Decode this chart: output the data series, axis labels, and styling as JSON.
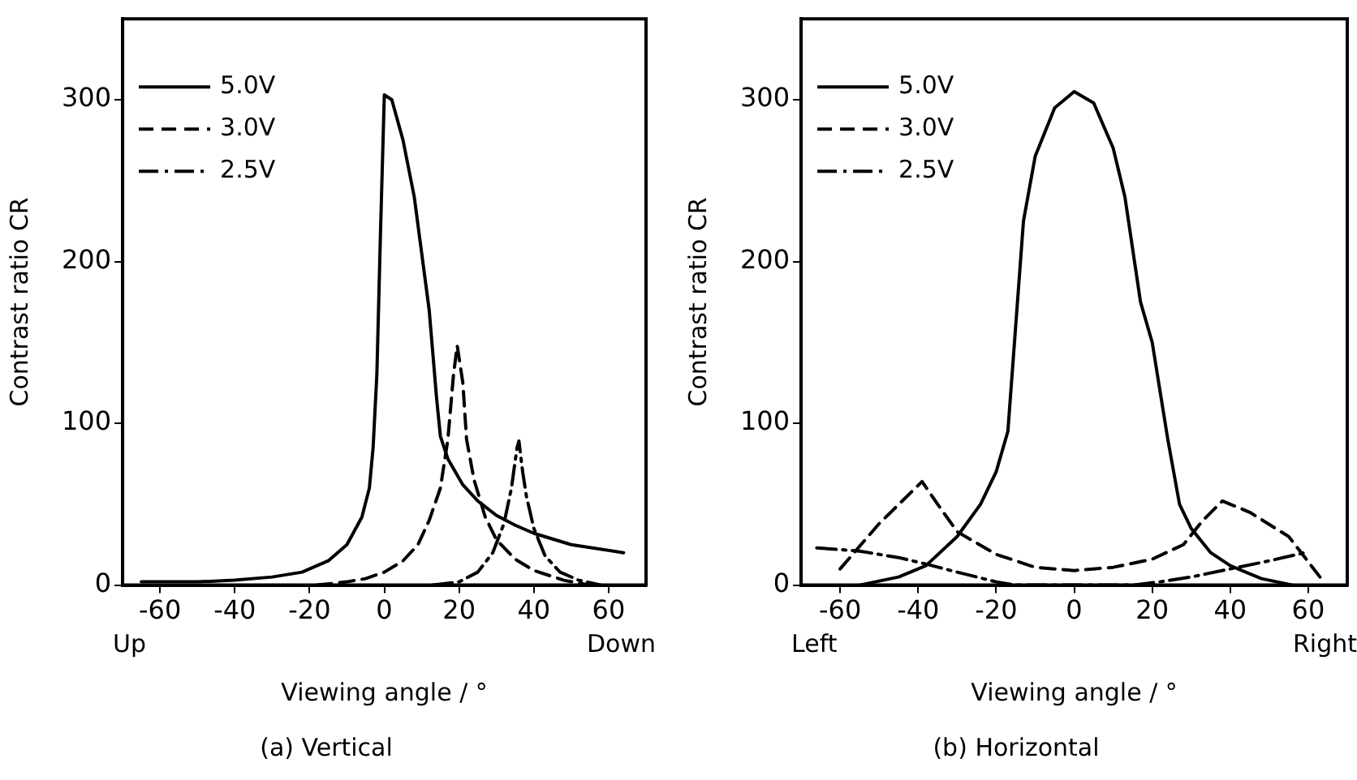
{
  "chart_data": [
    {
      "type": "line",
      "title": "(a) Vertical",
      "xlabel": "Viewing angle / °",
      "ylabel": "Contrast ratio CR",
      "annotations": [
        "Up",
        "Down"
      ],
      "xlim": [
        -70,
        70
      ],
      "xticks": [
        -60,
        -40,
        -20,
        0,
        20,
        40,
        60
      ],
      "ylim": [
        0,
        350
      ],
      "yticks": [
        0,
        100,
        200,
        300
      ],
      "grid": false,
      "legend": "top left",
      "marker": "none",
      "series": [
        {
          "name": "5.0V",
          "color": "#000000",
          "line_style": "solid",
          "x": [
            -65,
            -50,
            -40,
            -30,
            -22,
            -15,
            -10,
            -6,
            -4,
            -3,
            -2,
            -1,
            0,
            2,
            5,
            8,
            10,
            12,
            14,
            15,
            17,
            21,
            25,
            30,
            35,
            40,
            50,
            64
          ],
          "values": [
            2,
            2,
            3,
            5,
            8,
            15,
            25,
            42,
            60,
            85,
            130,
            220,
            303,
            300,
            275,
            240,
            205,
            170,
            115,
            92,
            78,
            62,
            52,
            43,
            37,
            32,
            25,
            20
          ]
        },
        {
          "name": "3.0V",
          "color": "#000000",
          "line_style": "dashed",
          "x": [
            -18,
            -10,
            -5,
            0,
            5,
            9,
            12,
            15,
            17,
            18.5,
            19.5,
            21,
            22,
            24,
            27,
            30,
            35,
            40,
            48,
            55
          ],
          "values": [
            0,
            2,
            4,
            8,
            15,
            25,
            40,
            60,
            90,
            130,
            148,
            125,
            90,
            65,
            42,
            28,
            16,
            9,
            3,
            0
          ]
        },
        {
          "name": "2.5V",
          "color": "#000000",
          "line_style": "dashdot",
          "x": [
            13,
            20,
            25,
            29,
            32,
            34,
            35.5,
            36,
            37,
            38,
            40,
            43,
            47,
            52,
            58
          ],
          "values": [
            0,
            2,
            8,
            20,
            38,
            60,
            85,
            89,
            70,
            55,
            35,
            18,
            8,
            3,
            0
          ]
        }
      ]
    },
    {
      "type": "line",
      "title": "(b) Horizontal",
      "xlabel": "Viewing angle / °",
      "ylabel": "Contrast ratio CR",
      "annotations": [
        "Left",
        "Right"
      ],
      "xlim": [
        -70,
        70
      ],
      "xticks": [
        -60,
        -40,
        -20,
        0,
        20,
        40,
        60
      ],
      "ylim": [
        0,
        350
      ],
      "yticks": [
        0,
        100,
        200,
        300
      ],
      "grid": false,
      "legend": "top left",
      "marker": "none",
      "series": [
        {
          "name": "5.0V",
          "color": "#000000",
          "line_style": "solid",
          "x": [
            -55,
            -45,
            -38,
            -30,
            -24,
            -20,
            -17,
            -15,
            -13,
            -10,
            -5,
            0,
            5,
            10,
            13,
            17,
            20,
            24,
            27,
            30,
            35,
            40,
            48,
            56
          ],
          "values": [
            0,
            5,
            12,
            30,
            50,
            70,
            95,
            160,
            225,
            265,
            295,
            305,
            298,
            270,
            240,
            175,
            150,
            90,
            50,
            35,
            20,
            12,
            4,
            0
          ]
        },
        {
          "name": "3.0V",
          "color": "#000000",
          "line_style": "dashed",
          "x": [
            -60,
            -50,
            -39,
            -35,
            -30,
            -20,
            -10,
            0,
            10,
            20,
            28,
            33,
            38,
            45,
            55,
            63
          ],
          "values": [
            10,
            38,
            64,
            50,
            33,
            19,
            11,
            9,
            11,
            16,
            25,
            40,
            52,
            45,
            30,
            5
          ]
        },
        {
          "name": "2.5V",
          "color": "#000000",
          "line_style": "dashdot",
          "x": [
            -66,
            -55,
            -45,
            -38,
            -30,
            -20,
            -15,
            15,
            22,
            30,
            40,
            50,
            59
          ],
          "values": [
            23,
            21,
            17,
            13,
            8,
            2,
            0,
            0,
            2,
            5,
            10,
            15,
            20
          ]
        }
      ]
    }
  ]
}
